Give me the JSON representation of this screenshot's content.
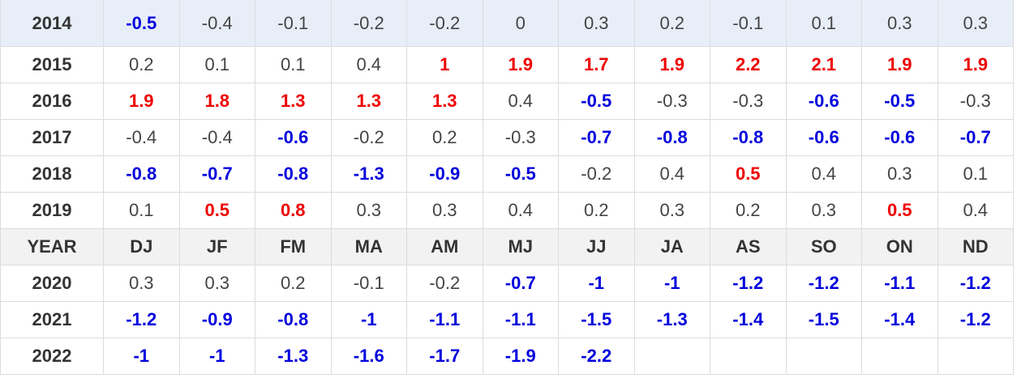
{
  "table": {
    "rows_top": [
      {
        "year": 2014,
        "values": [
          -0.5,
          -0.4,
          -0.1,
          -0.2,
          -0.2,
          0,
          0.3,
          0.2,
          -0.1,
          0.1,
          0.3,
          0.3
        ]
      },
      {
        "year": 2015,
        "values": [
          0.2,
          0.1,
          0.1,
          0.4,
          1,
          1.9,
          1.7,
          1.9,
          2.2,
          2.1,
          1.9,
          1.9
        ]
      },
      {
        "year": 2016,
        "values": [
          1.9,
          1.8,
          1.3,
          1.3,
          1.3,
          0.4,
          -0.5,
          -0.3,
          -0.3,
          -0.6,
          -0.5,
          -0.3
        ]
      },
      {
        "year": 2017,
        "values": [
          -0.4,
          -0.4,
          -0.6,
          -0.2,
          0.2,
          -0.3,
          -0.7,
          -0.8,
          -0.8,
          -0.6,
          -0.6,
          -0.7
        ]
      },
      {
        "year": 2018,
        "values": [
          -0.8,
          -0.7,
          -0.8,
          -1.3,
          -0.9,
          -0.5,
          -0.2,
          0.4,
          0.5,
          0.4,
          0.3,
          0.1
        ]
      },
      {
        "year": 2019,
        "values": [
          0.1,
          0.5,
          0.8,
          0.3,
          0.3,
          0.4,
          0.2,
          0.3,
          0.2,
          0.3,
          0.5,
          0.4
        ]
      }
    ],
    "header": [
      "YEAR",
      "DJ",
      "JF",
      "FM",
      "MA",
      "AM",
      "MJ",
      "JJ",
      "JA",
      "AS",
      "SO",
      "ON",
      "ND"
    ],
    "rows_bottom": [
      {
        "year": 2020,
        "values": [
          0.3,
          0.3,
          0.2,
          -0.1,
          -0.2,
          -0.7,
          -1,
          -1,
          -1.2,
          -1.2,
          -1.1,
          -1.2
        ]
      },
      {
        "year": 2021,
        "values": [
          -1.2,
          -0.9,
          -0.8,
          -1,
          -1.1,
          -1.1,
          -1.5,
          -1.3,
          -1.4,
          -1.5,
          -1.4,
          -1.2
        ]
      },
      {
        "year": 2022,
        "values": [
          -1,
          -1,
          -1.3,
          -1.6,
          -1.7,
          -1.9,
          -2.2
        ]
      }
    ]
  }
}
